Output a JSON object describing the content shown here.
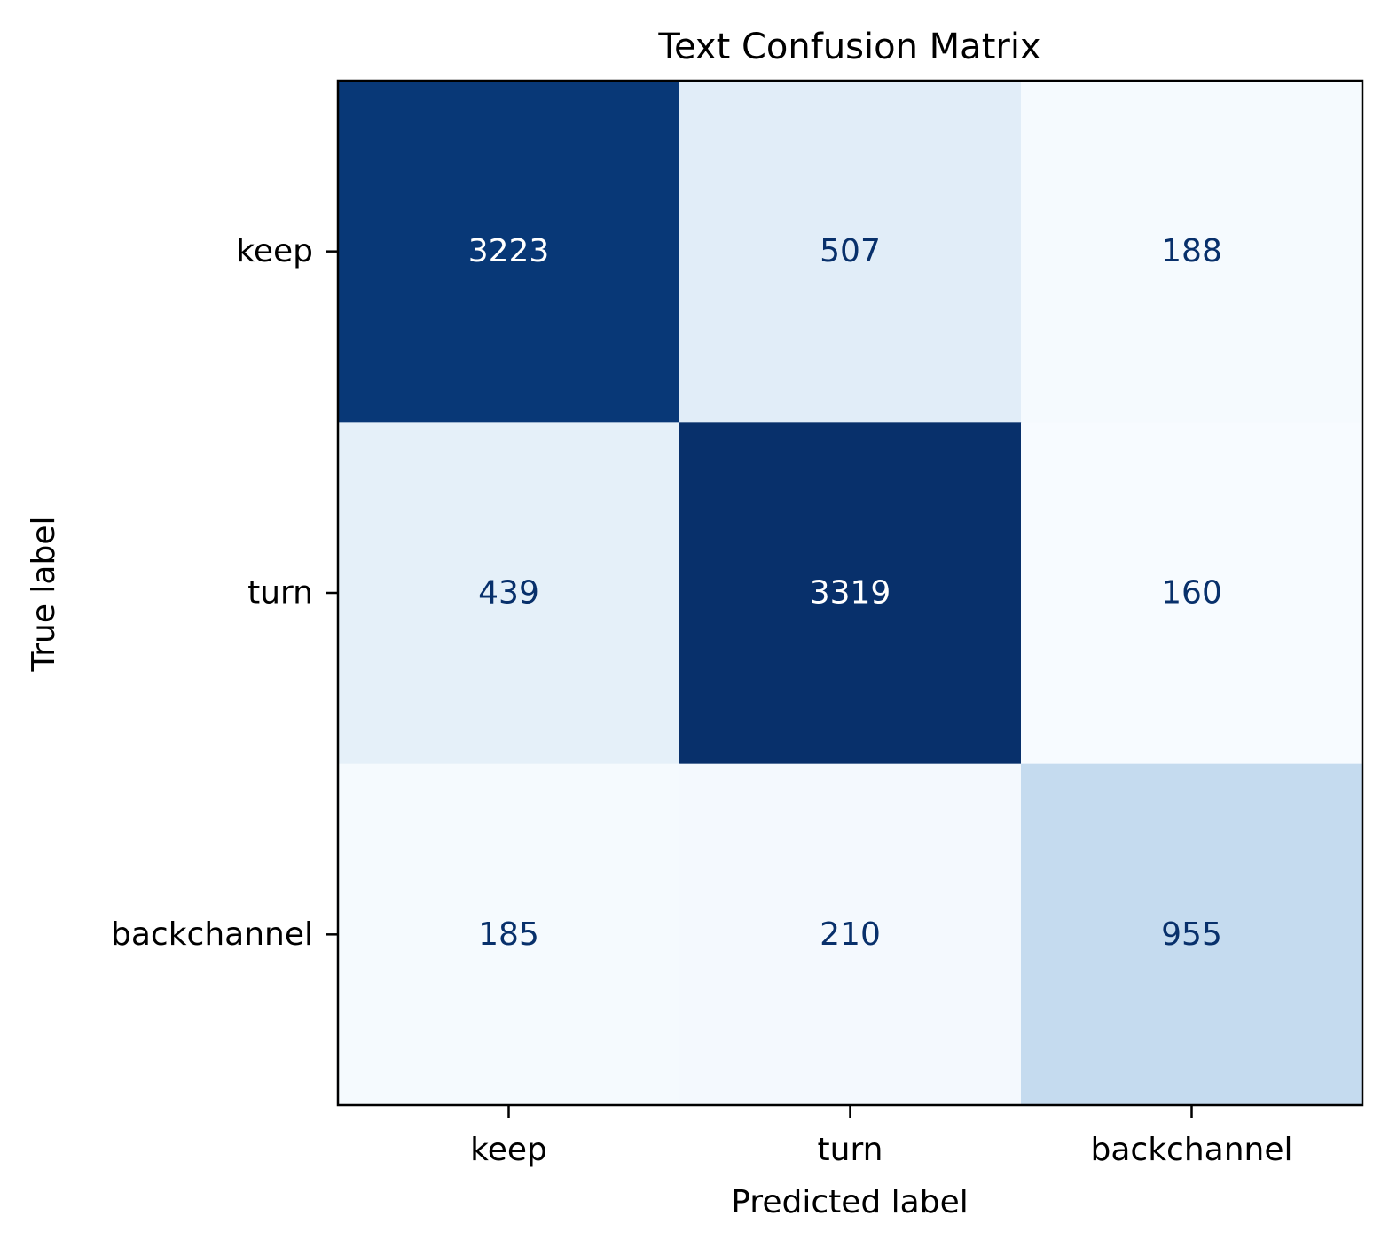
{
  "chart_data": {
    "type": "heatmap",
    "title": "Text Confusion Matrix",
    "xlabel": "Predicted label",
    "ylabel": "True label",
    "x_categories": [
      "keep",
      "turn",
      "backchannel"
    ],
    "y_categories": [
      "keep",
      "turn",
      "backchannel"
    ],
    "values": [
      [
        3223,
        507,
        188
      ],
      [
        439,
        3319,
        160
      ],
      [
        185,
        210,
        955
      ]
    ],
    "colormap": "Blues",
    "colorbar": false,
    "grid": false,
    "colors": {
      "dark_cell": "#08306b",
      "light_cell": "#f7fbff",
      "dark_text": "#08306b",
      "light_text": "#ffffff"
    }
  }
}
